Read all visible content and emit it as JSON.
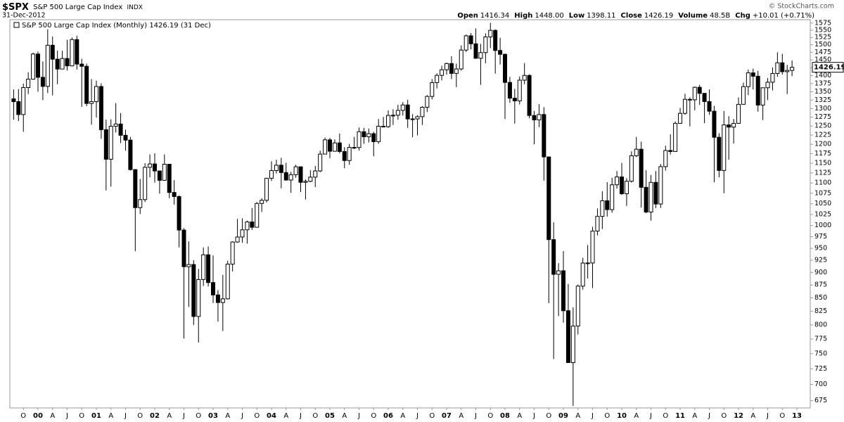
{
  "header": {
    "symbol": "$SPX",
    "name": "S&P 500 Large Cap Index",
    "exchange": "INDX",
    "date": "31-Dec-2012",
    "copyright": "© StockCharts.com",
    "quote": [
      {
        "label": "Open",
        "value": "1416.34"
      },
      {
        "label": "High",
        "value": "1448.00"
      },
      {
        "label": "Low",
        "value": "1398.11"
      },
      {
        "label": "Close",
        "value": "1426.19"
      },
      {
        "label": "Volume",
        "value": "48.5B"
      },
      {
        "label": "Chg",
        "value": "+10.01 (+0.71%)"
      }
    ]
  },
  "chart_data": {
    "type": "candlestick",
    "series_name": "S&P 500 Large Cap Index (Monthly)",
    "legend_date": "(31 Dec)",
    "up_color": "#ffffff",
    "down_color": "#000000",
    "edge_color": "#000000",
    "log_scale": true,
    "grid": false,
    "categories": [
      null,
      null,
      "O",
      null,
      null,
      "00",
      null,
      null,
      "A",
      null,
      null,
      "J",
      null,
      null,
      "O",
      null,
      null,
      "01",
      null,
      null,
      "A",
      null,
      null,
      "J",
      null,
      null,
      "O",
      null,
      null,
      "02",
      null,
      null,
      "A",
      null,
      null,
      "J",
      null,
      null,
      "O",
      null,
      null,
      "03",
      null,
      null,
      "A",
      null,
      null,
      "J",
      null,
      null,
      "O",
      null,
      null,
      "04",
      null,
      null,
      "A",
      null,
      null,
      "J",
      null,
      null,
      "O",
      null,
      null,
      "05",
      null,
      null,
      "A",
      null,
      null,
      "J",
      null,
      null,
      "O",
      null,
      null,
      "06",
      null,
      null,
      "A",
      null,
      null,
      "J",
      null,
      null,
      "O",
      null,
      null,
      "07",
      null,
      null,
      "A",
      null,
      null,
      "J",
      null,
      null,
      "O",
      null,
      null,
      "08",
      null,
      null,
      "A",
      null,
      null,
      "J",
      null,
      null,
      "O",
      null,
      null,
      "09",
      null,
      null,
      "A",
      null,
      null,
      "J",
      null,
      null,
      "O",
      null,
      null,
      "10",
      null,
      null,
      "A",
      null,
      null,
      "J",
      null,
      null,
      "O",
      null,
      null,
      "11",
      null,
      null,
      "A",
      null,
      null,
      "J",
      null,
      null,
      "O",
      null,
      null,
      "12",
      null,
      null,
      "A",
      null,
      null,
      "J",
      null,
      null,
      "O",
      null,
      null,
      "13"
    ],
    "open": [
      1328.7,
      1320.4,
      1282.7,
      1362.9,
      1388.9,
      1469.3,
      1394.5,
      1366.4,
      1498.6,
      1452.4,
      1420.6,
      1454.6,
      1430.8,
      1517.7,
      1436.5,
      1429.4,
      1315,
      1320.3,
      1366,
      1239.9,
      1160.3,
      1249.5,
      1255.8,
      1224.4,
      1211.2,
      1133.6,
      1040.9,
      1059.8,
      1139.5,
      1148.1,
      1130.2,
      1106.7,
      1147.4,
      1076.9,
      1067.1,
      989.8,
      911.6,
      916.1,
      815.3,
      885.8,
      936.3,
      879.8,
      855.7,
      841.2,
      848.2,
      916.9,
      963.6,
      974.5,
      990.3,
      1008,
      996,
      1050.7,
      1058.2,
      1111.9,
      1131.1,
      1144.9,
      1126.2,
      1107.3,
      1120.7,
      1140.8,
      1101.7,
      1104.2,
      1114.6,
      1130.2,
      1173.8,
      1211.9,
      1181.3,
      1203.6,
      1180.6,
      1156.9,
      1191.5,
      1191.3,
      1234.2,
      1220.3,
      1228.8,
      1207,
      1249.5,
      1248.3,
      1280.1,
      1280.7,
      1294.8,
      1310.6,
      1270.1,
      1270.2,
      1276.7,
      1303.8,
      1335.9,
      1377.9,
      1400.6,
      1418.3,
      1438.2,
      1406.8,
      1420.9,
      1482.4,
      1530.6,
      1503.4,
      1455.3,
      1474,
      1526.8,
      1549.4,
      1481.1,
      1468.4,
      1378.6,
      1330.6,
      1322.7,
      1385.6,
      1400.4,
      1280,
      1267.4,
      1282.8,
      1166.4,
      968.8,
      896.2,
      903.3,
      825.9,
      735.1,
      797.9,
      872.8,
      919.1,
      919.3,
      987.5,
      1020.6,
      1057.1,
      1036.2,
      1095.6,
      1115.1,
      1073.9,
      1104.5,
      1169.4,
      1186.7,
      1089.4,
      1030.7,
      1101.6,
      1049.3,
      1141.2,
      1183.3,
      1180.6,
      1257.6,
      1286.1,
      1327.2,
      1325.8,
      1363.6,
      1345.2,
      1320.6,
      1292.3,
      1218.9,
      1131.4,
      1253.3,
      1247,
      1257.6,
      1312.4,
      1365.7,
      1408.5,
      1397.9,
      1310.3,
      1362.2,
      1379.3,
      1406.6,
      1440.7,
      1412.2,
      1416.34,
      null
    ],
    "high": [
      1357,
      1358,
      1375,
      1410,
      1474,
      1478,
      1445,
      1553,
      1528,
      1481,
      1480,
      1517,
      1525,
      1531,
      1454,
      1438,
      1389,
      1384,
      1376,
      1268,
      1269,
      1316,
      1287,
      1240,
      1220,
      1135,
      1110,
      1150,
      1173,
      1176,
      1131,
      1173,
      1148,
      1107,
      1070,
      994,
      965,
      925,
      907,
      952,
      954,
      935,
      865,
      895,
      924,
      965,
      1015,
      1016,
      1011,
      1040,
      1054,
      1063,
      1112,
      1155,
      1159,
      1164,
      1151,
      1128,
      1146,
      1141,
      1109,
      1132,
      1143,
      1183,
      1218,
      1217,
      1213,
      1229,
      1192,
      1201,
      1220,
      1246,
      1245,
      1243,
      1234,
      1270,
      1276,
      1295,
      1298,
      1311,
      1319,
      1326,
      1284,
      1281,
      1307,
      1340,
      1389,
      1407,
      1431,
      1441,
      1462,
      1438,
      1498,
      1535,
      1540,
      1556,
      1503,
      1539,
      1576,
      1553,
      1524,
      1471,
      1396,
      1359,
      1397,
      1440,
      1404,
      1293,
      1313,
      1304,
      1167,
      1007,
      919,
      944,
      877,
      832,
      876,
      930,
      957,
      997,
      1039,
      1080,
      1102,
      1113,
      1130,
      1151,
      1112,
      1181,
      1220,
      1207,
      1132,
      1120,
      1130,
      1148,
      1196,
      1227,
      1263,
      1302,
      1344,
      1333,
      1366,
      1371,
      1346,
      1357,
      1308,
      1230,
      1293,
      1278,
      1270,
      1333,
      1378,
      1419,
      1422,
      1415,
      1363,
      1392,
      1426,
      1475,
      1470,
      1434,
      1448.0,
      null
    ],
    "low": [
      1268,
      1264,
      1234,
      1343,
      1387,
      1350,
      1325,
      1346,
      1339,
      1373,
      1420,
      1416,
      1429,
      1419,
      1305,
      1307,
      1254,
      1274,
      1215,
      1082,
      1091,
      1232,
      1203,
      1183,
      1131,
      944,
      1026,
      1054,
      1114,
      1101,
      1074,
      1106,
      1063,
      1048,
      952,
      776,
      833,
      800,
      769,
      873,
      872,
      840,
      806,
      789,
      847,
      902,
      962,
      962,
      960,
      990,
      996,
      1031,
      1053,
      1105,
      1124,
      1087,
      1106,
      1076,
      1113,
      1078,
      1060,
      1102,
      1090,
      1127,
      1173,
      1163,
      1180,
      1176,
      1137,
      1146,
      1187,
      1183,
      1201,
      1205,
      1168,
      1201,
      1246,
      1245,
      1253,
      1268,
      1280,
      1245,
      1219,
      1224,
      1253,
      1290,
      1327,
      1360,
      1385,
      1403,
      1389,
      1364,
      1416,
      1476,
      1485,
      1454,
      1371,
      1439,
      1489,
      1406,
      1435,
      1270,
      1317,
      1257,
      1312,
      1373,
      1272,
      1200,
      1247,
      1106,
      840,
      741,
      816,
      804,
      735,
      667,
      783,
      866,
      888,
      869,
      978,
      992,
      1020,
      1029,
      1086,
      1071,
      1045,
      1101,
      1166,
      1041,
      1028,
      1011,
      1040,
      1040,
      1131,
      1173,
      1180,
      1257,
      1282,
      1249,
      1295,
      1311,
      1258,
      1282,
      1102,
      1114,
      1075,
      1159,
      1202,
      1257,
      1312,
      1340,
      1357,
      1291,
      1267,
      1325,
      1354,
      1396,
      1403,
      1343,
      1398.11,
      null
    ],
    "close": [
      1320.4,
      1282.7,
      1362.9,
      1388.9,
      1469.3,
      1394.5,
      1366.4,
      1498.6,
      1452.4,
      1420.6,
      1454.6,
      1430.8,
      1517.7,
      1436.5,
      1429.4,
      1315,
      1320.3,
      1366,
      1239.9,
      1160.3,
      1249.5,
      1255.8,
      1224.4,
      1211.2,
      1133.6,
      1040.9,
      1059.8,
      1139.5,
      1148.1,
      1130.2,
      1106.7,
      1147.4,
      1076.9,
      1067.1,
      989.8,
      911.6,
      916.1,
      815.3,
      885.8,
      936.3,
      879.8,
      855.7,
      841.2,
      848.2,
      916.9,
      963.6,
      974.5,
      990.3,
      1008,
      996,
      1050.7,
      1058.2,
      1111.9,
      1131.1,
      1144.9,
      1126.2,
      1107.3,
      1120.7,
      1140.8,
      1101.7,
      1104.2,
      1114.6,
      1130.2,
      1173.8,
      1211.9,
      1181.3,
      1203.6,
      1180.6,
      1156.9,
      1191.5,
      1191.3,
      1234.2,
      1220.3,
      1228.8,
      1207,
      1249.5,
      1248.3,
      1280.1,
      1280.7,
      1294.8,
      1310.6,
      1270.1,
      1270.2,
      1276.7,
      1303.8,
      1335.9,
      1377.9,
      1400.6,
      1418.3,
      1438.2,
      1406.8,
      1420.9,
      1482.4,
      1530.6,
      1503.4,
      1455.3,
      1474,
      1526.8,
      1549.4,
      1481.1,
      1468.4,
      1378.6,
      1330.6,
      1322.7,
      1385.6,
      1400.4,
      1280,
      1267.4,
      1282.8,
      1166.4,
      968.8,
      896.2,
      903.3,
      825.9,
      735.1,
      797.9,
      872.8,
      919.1,
      919.3,
      987.5,
      1020.6,
      1057.1,
      1036.2,
      1095.6,
      1115.1,
      1073.9,
      1104.5,
      1169.4,
      1186.7,
      1089.4,
      1030.7,
      1101.6,
      1049.3,
      1141.2,
      1183.3,
      1180.6,
      1257.6,
      1286.1,
      1327.2,
      1325.8,
      1363.6,
      1345.2,
      1320.6,
      1292.3,
      1218.9,
      1131.4,
      1253.3,
      1247,
      1257.6,
      1312.4,
      1365.7,
      1408.5,
      1397.9,
      1310.3,
      1362.2,
      1379.3,
      1406.6,
      1440.7,
      1412.2,
      1416.2,
      1426.19,
      null
    ],
    "ylim": [
      664,
      1587
    ],
    "yticks": [
      675,
      700,
      725,
      750,
      775,
      800,
      825,
      850,
      875,
      900,
      925,
      950,
      975,
      1000,
      1025,
      1050,
      1075,
      1100,
      1125,
      1150,
      1175,
      1200,
      1225,
      1250,
      1275,
      1300,
      1325,
      1350,
      1375,
      1400,
      1425,
      1450,
      1475,
      1500,
      1525,
      1550,
      1575
    ]
  }
}
